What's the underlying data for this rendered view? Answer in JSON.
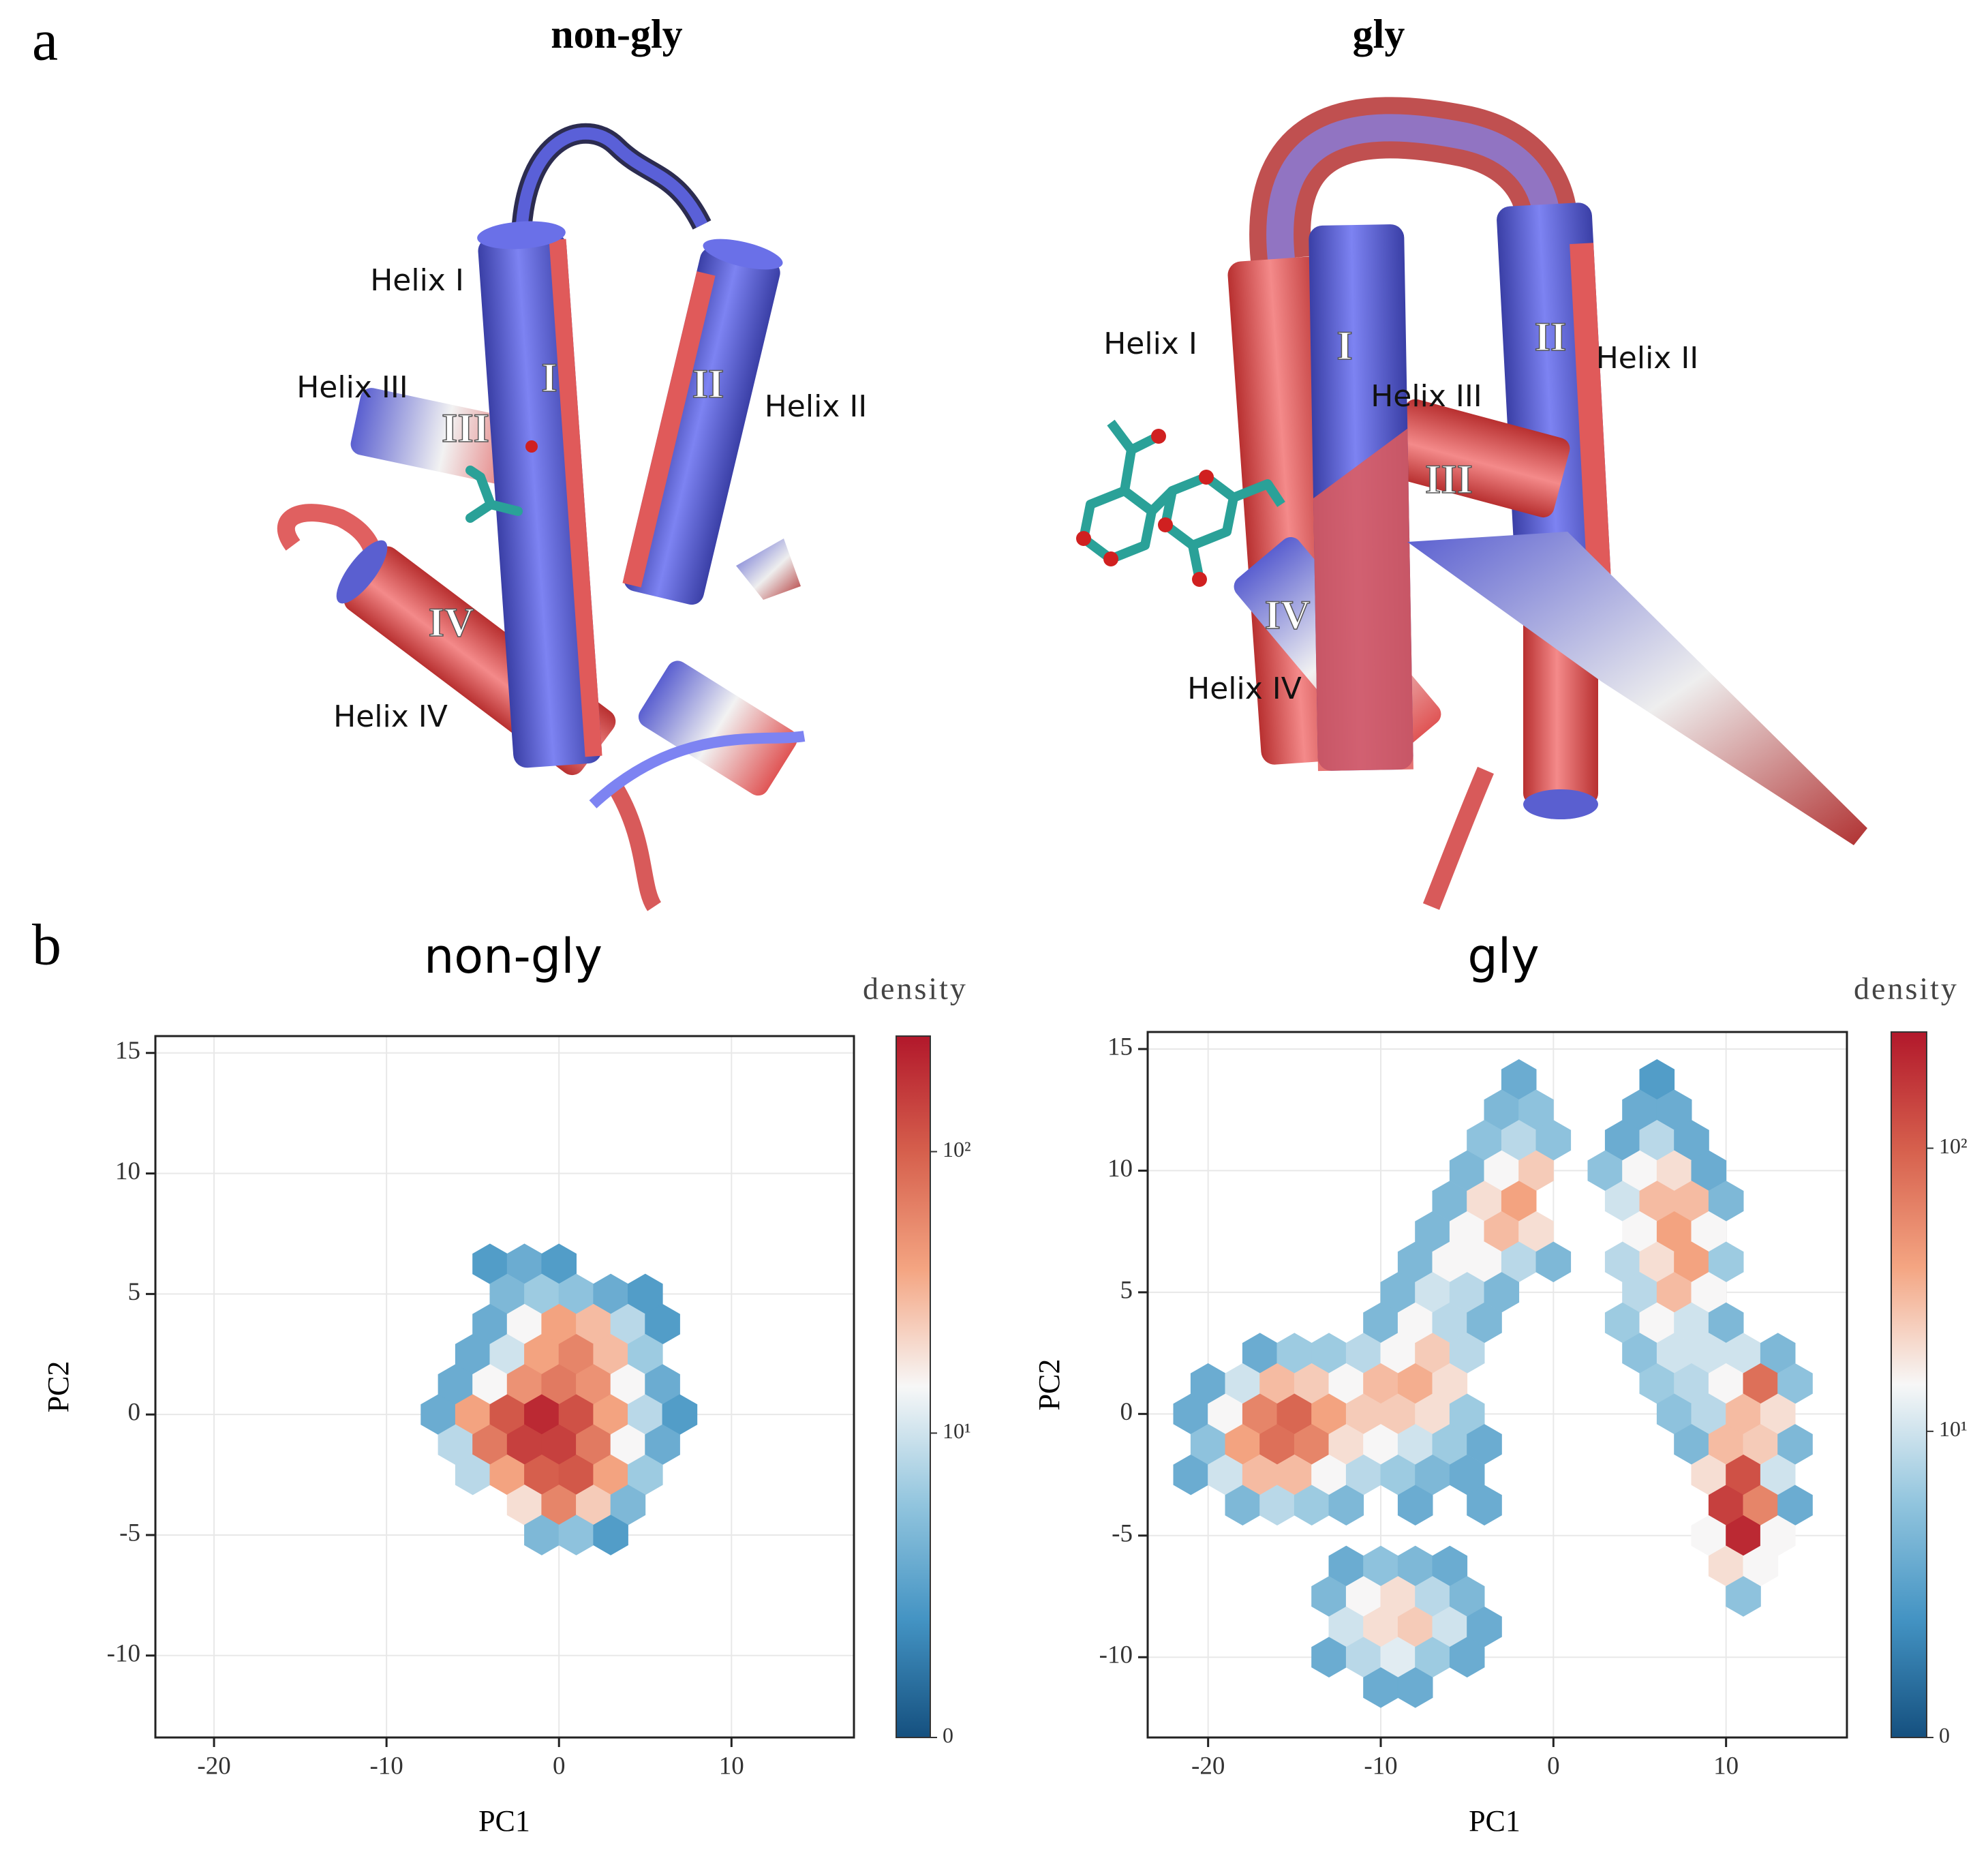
{
  "panel_a": {
    "label": "a",
    "titles": [
      "non-gly",
      "gly"
    ],
    "helix_labels": [
      [
        "Helix I",
        "Helix II",
        "Helix III",
        "Helix IV"
      ],
      [
        "Helix I",
        "Helix II",
        "Helix III",
        "Helix IV"
      ]
    ],
    "numerals": [
      [
        "I",
        "II",
        "III",
        "IV"
      ],
      [
        "I",
        "II",
        "III",
        "IV"
      ]
    ]
  },
  "panel_b": {
    "label": "b"
  },
  "chart_data": [
    {
      "type": "hexbin",
      "title": "non-gly",
      "xlabel": "PC1",
      "ylabel": "PC2",
      "xlim": [
        -23.4,
        17.1
      ],
      "ylim": [
        -13.4,
        15.7
      ],
      "xticks": [
        -20,
        -10,
        0,
        10
      ],
      "yticks": [
        -10,
        -5,
        0,
        5,
        10,
        15
      ],
      "grid": true,
      "colorbar_label": "density",
      "clim": [
        0,
        250
      ],
      "cticks": [
        {
          "value": 0,
          "label": "0"
        },
        {
          "value": 10,
          "label": "10¹"
        },
        {
          "value": 100,
          "label": "10²"
        }
      ],
      "colorscale": [
        "#15507f",
        "#4393c3",
        "#92c5de",
        "#f7f7f7",
        "#f4a582",
        "#d6604d",
        "#b2182b"
      ],
      "cells": [
        [
          -4,
          6.25,
          2
        ],
        [
          -2,
          6.25,
          3
        ],
        [
          0,
          6.25,
          2
        ],
        [
          -3,
          5,
          4
        ],
        [
          -1,
          5,
          6
        ],
        [
          1,
          5,
          5
        ],
        [
          3,
          5,
          3
        ],
        [
          5,
          5,
          2
        ],
        [
          -4,
          3.75,
          3
        ],
        [
          -2,
          3.75,
          15
        ],
        [
          0,
          3.75,
          40
        ],
        [
          2,
          3.75,
          30
        ],
        [
          4,
          3.75,
          8
        ],
        [
          6,
          3.75,
          2
        ],
        [
          -5,
          2.5,
          3
        ],
        [
          -3,
          2.5,
          10
        ],
        [
          -1,
          2.5,
          40
        ],
        [
          1,
          2.5,
          60
        ],
        [
          3,
          2.5,
          30
        ],
        [
          5,
          2.5,
          6
        ],
        [
          -6,
          1.25,
          3
        ],
        [
          -4,
          1.25,
          15
        ],
        [
          -2,
          1.25,
          50
        ],
        [
          0,
          1.25,
          70
        ],
        [
          2,
          1.25,
          50
        ],
        [
          4,
          1.25,
          15
        ],
        [
          6,
          1.25,
          3
        ],
        [
          -7,
          0,
          3
        ],
        [
          -5,
          0,
          40
        ],
        [
          -3,
          0,
          110
        ],
        [
          -1,
          0,
          200
        ],
        [
          1,
          0,
          120
        ],
        [
          3,
          0,
          40
        ],
        [
          5,
          0,
          8
        ],
        [
          7,
          0,
          2
        ],
        [
          -6,
          -1.25,
          8
        ],
        [
          -4,
          -1.25,
          70
        ],
        [
          -2,
          -1.25,
          150
        ],
        [
          0,
          -1.25,
          150
        ],
        [
          2,
          -1.25,
          70
        ],
        [
          4,
          -1.25,
          15
        ],
        [
          6,
          -1.25,
          3
        ],
        [
          -5,
          -2.5,
          8
        ],
        [
          -3,
          -2.5,
          40
        ],
        [
          -1,
          -2.5,
          100
        ],
        [
          1,
          -2.5,
          110
        ],
        [
          3,
          -2.5,
          40
        ],
        [
          5,
          -2.5,
          6
        ],
        [
          -2,
          -3.75,
          20
        ],
        [
          0,
          -3.75,
          60
        ],
        [
          2,
          -3.75,
          25
        ],
        [
          4,
          -3.75,
          4
        ],
        [
          -1,
          -5,
          4
        ],
        [
          1,
          -5,
          5
        ],
        [
          3,
          -5,
          2
        ]
      ]
    },
    {
      "type": "hexbin",
      "title": "gly",
      "xlabel": "PC1",
      "ylabel": "PC2",
      "xlim": [
        -23.5,
        17.0
      ],
      "ylim": [
        -13.3,
        15.7
      ],
      "xticks": [
        -20,
        -10,
        0,
        10
      ],
      "yticks": [
        -10,
        -5,
        0,
        5,
        10,
        15
      ],
      "grid": true,
      "colorbar_label": "density",
      "clim": [
        0,
        250
      ],
      "cticks": [
        {
          "value": 0,
          "label": "0"
        },
        {
          "value": 10,
          "label": "10¹"
        },
        {
          "value": 100,
          "label": "10²"
        }
      ],
      "colorscale": [
        "#15507f",
        "#4393c3",
        "#92c5de",
        "#f7f7f7",
        "#f4a582",
        "#d6604d",
        "#b2182b"
      ],
      "cells": [
        [
          -2,
          13.75,
          3
        ],
        [
          6,
          13.75,
          2
        ],
        [
          -3,
          12.5,
          4
        ],
        [
          -1,
          12.5,
          5
        ],
        [
          5,
          12.5,
          3
        ],
        [
          7,
          12.5,
          3
        ],
        [
          -4,
          11.25,
          5
        ],
        [
          -2,
          11.25,
          8
        ],
        [
          0,
          11.25,
          5
        ],
        [
          4,
          11.25,
          3
        ],
        [
          6,
          11.25,
          8
        ],
        [
          8,
          11.25,
          3
        ],
        [
          -5,
          10,
          4
        ],
        [
          -3,
          10,
          15
        ],
        [
          -1,
          10,
          25
        ],
        [
          3,
          10,
          5
        ],
        [
          5,
          10,
          15
        ],
        [
          7,
          10,
          20
        ],
        [
          9,
          10,
          3
        ],
        [
          -6,
          8.75,
          4
        ],
        [
          -4,
          8.75,
          20
        ],
        [
          -2,
          8.75,
          40
        ],
        [
          4,
          8.75,
          10
        ],
        [
          6,
          8.75,
          30
        ],
        [
          8,
          8.75,
          30
        ],
        [
          10,
          8.75,
          4
        ],
        [
          -7,
          7.5,
          4
        ],
        [
          -5,
          7.5,
          15
        ],
        [
          -3,
          7.5,
          30
        ],
        [
          -1,
          7.5,
          20
        ],
        [
          5,
          7.5,
          15
        ],
        [
          7,
          7.5,
          40
        ],
        [
          9,
          7.5,
          15
        ],
        [
          -8,
          6.25,
          4
        ],
        [
          -6,
          6.25,
          15
        ],
        [
          -4,
          6.25,
          15
        ],
        [
          -2,
          6.25,
          8
        ],
        [
          0,
          6.25,
          4
        ],
        [
          4,
          6.25,
          8
        ],
        [
          6,
          6.25,
          20
        ],
        [
          8,
          6.25,
          40
        ],
        [
          10,
          6.25,
          6
        ],
        [
          -9,
          5,
          4
        ],
        [
          -7,
          5,
          10
        ],
        [
          -5,
          5,
          8
        ],
        [
          -3,
          5,
          4
        ],
        [
          5,
          5,
          8
        ],
        [
          7,
          5,
          30
        ],
        [
          9,
          5,
          15
        ],
        [
          -10,
          3.75,
          4
        ],
        [
          -8,
          3.75,
          15
        ],
        [
          -6,
          3.75,
          8
        ],
        [
          -4,
          3.75,
          4
        ],
        [
          4,
          3.75,
          6
        ],
        [
          6,
          3.75,
          15
        ],
        [
          8,
          3.75,
          10
        ],
        [
          10,
          3.75,
          4
        ],
        [
          -17,
          2.5,
          3
        ],
        [
          -15,
          2.5,
          6
        ],
        [
          -13,
          2.5,
          6
        ],
        [
          -11,
          2.5,
          8
        ],
        [
          -9,
          2.5,
          15
        ],
        [
          -7,
          2.5,
          25
        ],
        [
          -5,
          2.5,
          8
        ],
        [
          5,
          2.5,
          5
        ],
        [
          7,
          2.5,
          10
        ],
        [
          9,
          2.5,
          10
        ],
        [
          11,
          2.5,
          10
        ],
        [
          13,
          2.5,
          4
        ],
        [
          -20,
          1.25,
          3
        ],
        [
          -18,
          1.25,
          10
        ],
        [
          -16,
          1.25,
          30
        ],
        [
          -14,
          1.25,
          25
        ],
        [
          -12,
          1.25,
          15
        ],
        [
          -10,
          1.25,
          30
        ],
        [
          -8,
          1.25,
          35
        ],
        [
          -6,
          1.25,
          20
        ],
        [
          6,
          1.25,
          6
        ],
        [
          8,
          1.25,
          8
        ],
        [
          10,
          1.25,
          15
        ],
        [
          12,
          1.25,
          80
        ],
        [
          14,
          1.25,
          5
        ],
        [
          -21,
          0,
          3
        ],
        [
          -19,
          0,
          15
        ],
        [
          -17,
          0,
          60
        ],
        [
          -15,
          0,
          90
        ],
        [
          -13,
          0,
          40
        ],
        [
          -11,
          0,
          25
        ],
        [
          -9,
          0,
          25
        ],
        [
          -7,
          0,
          20
        ],
        [
          -5,
          0,
          6
        ],
        [
          7,
          0,
          5
        ],
        [
          9,
          0,
          8
        ],
        [
          11,
          0,
          30
        ],
        [
          13,
          0,
          20
        ],
        [
          -20,
          -1.25,
          5
        ],
        [
          -18,
          -1.25,
          40
        ],
        [
          -16,
          -1.25,
          80
        ],
        [
          -14,
          -1.25,
          60
        ],
        [
          -12,
          -1.25,
          20
        ],
        [
          -10,
          -1.25,
          15
        ],
        [
          -8,
          -1.25,
          10
        ],
        [
          -6,
          -1.25,
          6
        ],
        [
          -4,
          -1.25,
          3
        ],
        [
          8,
          -1.25,
          4
        ],
        [
          10,
          -1.25,
          30
        ],
        [
          12,
          -1.25,
          25
        ],
        [
          14,
          -1.25,
          4
        ],
        [
          -21,
          -2.5,
          3
        ],
        [
          -19,
          -2.5,
          10
        ],
        [
          -17,
          -2.5,
          30
        ],
        [
          -15,
          -2.5,
          30
        ],
        [
          -13,
          -2.5,
          15
        ],
        [
          -11,
          -2.5,
          8
        ],
        [
          -9,
          -2.5,
          6
        ],
        [
          -7,
          -2.5,
          4
        ],
        [
          -5,
          -2.5,
          3
        ],
        [
          9,
          -2.5,
          20
        ],
        [
          11,
          -2.5,
          120
        ],
        [
          13,
          -2.5,
          10
        ],
        [
          -18,
          -3.75,
          4
        ],
        [
          -16,
          -3.75,
          8
        ],
        [
          -14,
          -3.75,
          6
        ],
        [
          -12,
          -3.75,
          4
        ],
        [
          -8,
          -3.75,
          3
        ],
        [
          -4,
          -3.75,
          3
        ],
        [
          10,
          -3.75,
          150
        ],
        [
          12,
          -3.75,
          60
        ],
        [
          14,
          -3.75,
          3
        ],
        [
          9,
          -5,
          15
        ],
        [
          11,
          -5,
          200
        ],
        [
          13,
          -5,
          15
        ],
        [
          -12,
          -6.25,
          3
        ],
        [
          -10,
          -6.25,
          5
        ],
        [
          -8,
          -6.25,
          4
        ],
        [
          -6,
          -6.25,
          3
        ],
        [
          10,
          -6.25,
          20
        ],
        [
          12,
          -6.25,
          15
        ],
        [
          -13,
          -7.5,
          4
        ],
        [
          -11,
          -7.5,
          15
        ],
        [
          -9,
          -7.5,
          20
        ],
        [
          -7,
          -7.5,
          8
        ],
        [
          -5,
          -7.5,
          4
        ],
        [
          11,
          -7.5,
          5
        ],
        [
          -12,
          -8.75,
          10
        ],
        [
          -10,
          -8.75,
          20
        ],
        [
          -8,
          -8.75,
          25
        ],
        [
          -6,
          -8.75,
          10
        ],
        [
          -4,
          -8.75,
          3
        ],
        [
          -13,
          -10,
          3
        ],
        [
          -11,
          -10,
          8
        ],
        [
          -9,
          -10,
          12
        ],
        [
          -7,
          -10,
          6
        ],
        [
          -5,
          -10,
          3
        ],
        [
          -10,
          -11.25,
          3
        ],
        [
          -8,
          -11.25,
          3
        ]
      ]
    }
  ]
}
